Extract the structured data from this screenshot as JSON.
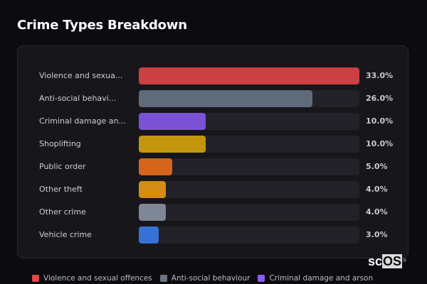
{
  "header": {
    "title": "Crime Types Breakdown"
  },
  "watermark": {
    "prefix": "sc",
    "highlight": "OS",
    "mark": "®"
  },
  "chart_data": {
    "type": "bar",
    "orientation": "horizontal",
    "title": "Crime Types Breakdown",
    "xlabel": "",
    "ylabel": "",
    "xlim": [
      0,
      33
    ],
    "grid": false,
    "legend_position": "bottom",
    "categories": [
      "Violence and sexual offences",
      "Anti-social behaviour",
      "Criminal damage and arson",
      "Shoplifting",
      "Public order",
      "Other theft",
      "Other crime",
      "Vehicle crime"
    ],
    "display_labels": [
      "Violence and sexua...",
      "Anti-social behavi...",
      "Criminal damage an...",
      "Shoplifting",
      "Public order",
      "Other theft",
      "Other crime",
      "Vehicle crime"
    ],
    "values": [
      33.0,
      26.0,
      10.0,
      10.0,
      5.0,
      4.0,
      4.0,
      3.0
    ],
    "value_labels": [
      "33.0%",
      "26.0%",
      "10.0%",
      "10.0%",
      "5.0%",
      "4.0%",
      "4.0%",
      "3.0%"
    ],
    "colors": [
      "#cc3f43",
      "#5f6b7a",
      "#7b52d3",
      "#c4960f",
      "#d4651b",
      "#d48c16",
      "#7f8797",
      "#3672d6"
    ],
    "unit": "%"
  },
  "rows": [
    {
      "label": "Violence and sexua...",
      "value": "33.0%",
      "pct": 100,
      "color": "#cc3f43"
    },
    {
      "label": "Anti-social behavi...",
      "value": "26.0%",
      "pct": 78.8,
      "color": "#5f6b7a"
    },
    {
      "label": "Criminal damage an...",
      "value": "10.0%",
      "pct": 30.3,
      "color": "#7b52d3"
    },
    {
      "label": "Shoplifting",
      "value": "10.0%",
      "pct": 30.3,
      "color": "#c4960f"
    },
    {
      "label": "Public order",
      "value": "5.0%",
      "pct": 15.2,
      "color": "#d4651b"
    },
    {
      "label": "Other theft",
      "value": "4.0%",
      "pct": 12.1,
      "color": "#d48c16"
    },
    {
      "label": "Other crime",
      "value": "4.0%",
      "pct": 12.1,
      "color": "#7f8797"
    },
    {
      "label": "Vehicle crime",
      "value": "3.0%",
      "pct": 9.1,
      "color": "#3672d6"
    }
  ],
  "legend": [
    {
      "label": "Violence and sexual offences",
      "color": "#e2464a"
    },
    {
      "label": "Anti-social behaviour",
      "color": "#6b7685"
    },
    {
      "label": "Criminal damage and arson",
      "color": "#8a5cf0"
    }
  ]
}
